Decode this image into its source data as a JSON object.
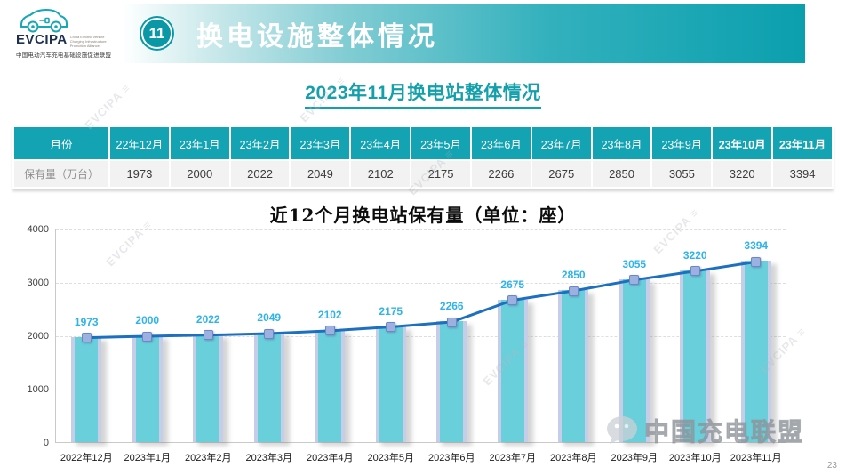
{
  "logo": {
    "name": "EVCIPA",
    "tagline_en": "China Electric Vehicle\nCharging Infrastructure\nPromotion Alliance",
    "tagline_cn": "中国电动汽车充电基础设施促进联盟"
  },
  "header": {
    "badge": "11",
    "title": "换电设施整体情况"
  },
  "subtitle": "2023年11月换电站整体情况",
  "table": {
    "columns": [
      "月份",
      "22年12月",
      "23年1月",
      "23年2月",
      "23年3月",
      "23年4月",
      "23年5月",
      "23年6月",
      "23年7月",
      "23年8月",
      "23年9月",
      "23年10月",
      "23年11月"
    ],
    "bold_from": 11,
    "row_label": "保有量（万台）",
    "values": [
      "1973",
      "2000",
      "2022",
      "2049",
      "2102",
      "2175",
      "2266",
      "2675",
      "2850",
      "3055",
      "3220",
      "3394"
    ]
  },
  "chart_data": {
    "type": "bar",
    "title": "近12个月换电站保有量（单位：座）",
    "categories": [
      "2022年12月",
      "2023年1月",
      "2023年2月",
      "2023年3月",
      "2023年4月",
      "2023年5月",
      "2023年6月",
      "2023年7月",
      "2023年8月",
      "2023年9月",
      "2023年10月",
      "2023年11月"
    ],
    "values": [
      1973,
      2000,
      2022,
      2049,
      2102,
      2175,
      2266,
      2675,
      2850,
      3055,
      3220,
      3394
    ],
    "overlay": "line with square markers and value labels",
    "ylim": [
      0,
      4000
    ],
    "yticks": [
      0,
      1000,
      2000,
      3000,
      4000
    ],
    "grid": "dashed-horizontal",
    "legend": "none",
    "colors": {
      "bar_fill": "#68cfdb",
      "bar_edge": "#c6cde9",
      "line": "#1d6fc0",
      "marker_fill": "#9db1e0",
      "marker_border": "#6d87c6",
      "value_label": "#2fb3e9",
      "accent_teal": "#14a3b3"
    }
  },
  "watermark": {
    "brand": "中国充电联盟",
    "tile": "EVCIPA"
  },
  "page_number": "23"
}
